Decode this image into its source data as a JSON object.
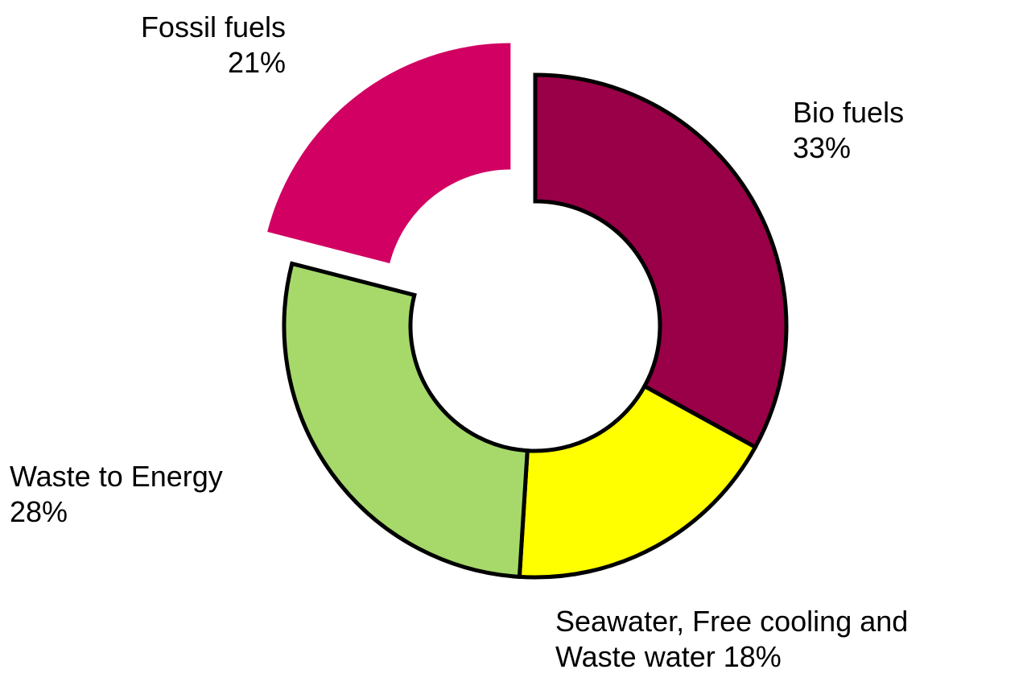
{
  "chart_data": {
    "type": "donut",
    "categories": [
      "Bio fuels",
      "Seawater, Free cooling and Waste water",
      "Waste to Energy",
      "Fossil fuels"
    ],
    "values": [
      33,
      18,
      28,
      21
    ],
    "value_labels": [
      "33%",
      "18%",
      "28%",
      "21%"
    ],
    "colors": [
      "#990047",
      "#ffff00",
      "#a6d96a",
      "#d10062"
    ],
    "explode": [
      false,
      false,
      false,
      true
    ]
  }
}
